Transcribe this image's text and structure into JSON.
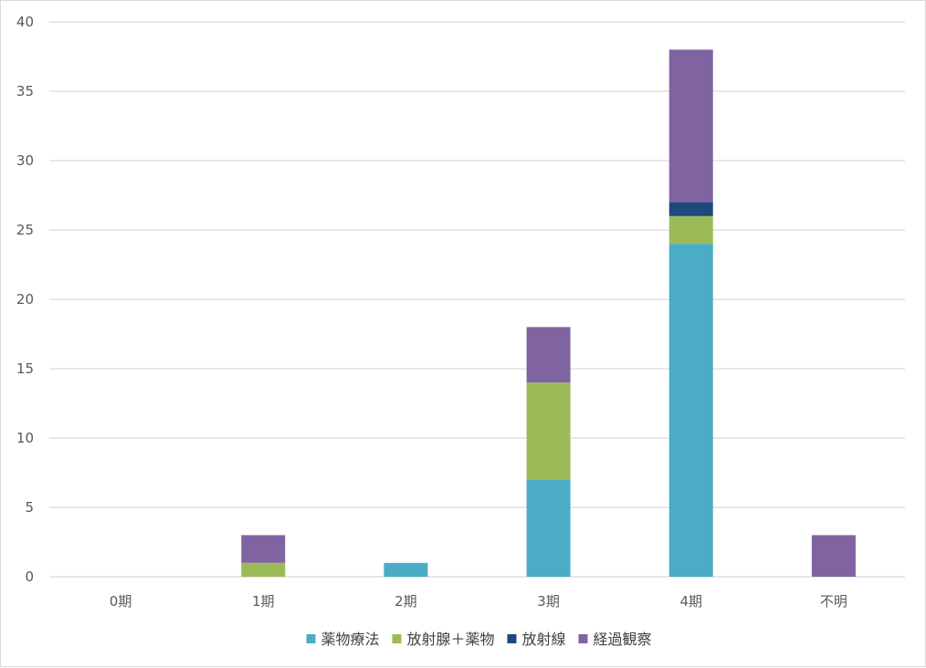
{
  "chart_data": {
    "type": "bar",
    "stacked": true,
    "categories": [
      "0期",
      "1期",
      "2期",
      "3期",
      "4期",
      "不明"
    ],
    "series": [
      {
        "name": "薬物療法",
        "color": "#4bacc6",
        "values": [
          0,
          0,
          1,
          7,
          24,
          0
        ]
      },
      {
        "name": "放射腺＋薬物",
        "color": "#9bbb59",
        "values": [
          0,
          1,
          0,
          7,
          2,
          0
        ]
      },
      {
        "name": "放射線",
        "color": "#1f497d",
        "values": [
          0,
          0,
          0,
          0,
          1,
          0
        ]
      },
      {
        "name": "経過観察",
        "color": "#8064a2",
        "values": [
          0,
          2,
          0,
          4,
          11,
          3
        ]
      }
    ],
    "ylim": [
      0,
      40
    ],
    "yticks": [
      0,
      5,
      10,
      15,
      20,
      25,
      30,
      35,
      40
    ],
    "grid": true,
    "legend_position": "bottom",
    "title": "",
    "xlabel": "",
    "ylabel": ""
  }
}
